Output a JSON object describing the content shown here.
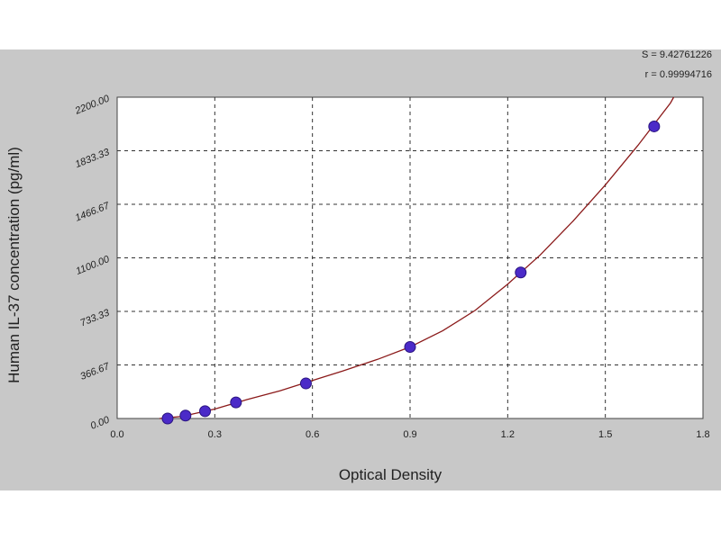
{
  "stats": {
    "s_line": "S = 9.42761226",
    "r_line": "r = 0.99994716"
  },
  "chart_data": {
    "type": "scatter",
    "xlabel": "Optical Density",
    "ylabel": "Human IL-37 concentration (pg/ml)",
    "xlim": [
      0.0,
      1.8
    ],
    "ylim": [
      0.0,
      2200.0
    ],
    "x_ticks": [
      "0.0",
      "0.3",
      "0.6",
      "0.9",
      "1.2",
      "1.5",
      "1.8"
    ],
    "y_ticks": [
      "0.00",
      "366.67",
      "733.33",
      "1100.00",
      "1466.67",
      "1833.33",
      "2200.00"
    ],
    "grid": true,
    "points": [
      {
        "x": 0.155,
        "y": 0
      },
      {
        "x": 0.21,
        "y": 20
      },
      {
        "x": 0.27,
        "y": 50
      },
      {
        "x": 0.365,
        "y": 110
      },
      {
        "x": 0.58,
        "y": 240
      },
      {
        "x": 0.9,
        "y": 490
      },
      {
        "x": 1.24,
        "y": 1000
      },
      {
        "x": 1.65,
        "y": 2000
      }
    ],
    "curve": [
      {
        "x": 0.13,
        "y": 0
      },
      {
        "x": 0.2,
        "y": 15
      },
      {
        "x": 0.3,
        "y": 65
      },
      {
        "x": 0.4,
        "y": 130
      },
      {
        "x": 0.5,
        "y": 190
      },
      {
        "x": 0.6,
        "y": 260
      },
      {
        "x": 0.7,
        "y": 330
      },
      {
        "x": 0.8,
        "y": 405
      },
      {
        "x": 0.9,
        "y": 490
      },
      {
        "x": 1.0,
        "y": 600
      },
      {
        "x": 1.1,
        "y": 740
      },
      {
        "x": 1.2,
        "y": 920
      },
      {
        "x": 1.3,
        "y": 1120
      },
      {
        "x": 1.4,
        "y": 1350
      },
      {
        "x": 1.5,
        "y": 1600
      },
      {
        "x": 1.6,
        "y": 1870
      },
      {
        "x": 1.7,
        "y": 2160
      },
      {
        "x": 1.71,
        "y": 2200
      }
    ],
    "colors": {
      "curve": "#8b1a1a",
      "point": "#4b2ac8",
      "grid": "#333333",
      "plot_bg": "#ffffff",
      "panel_bg": "#c8c8c8"
    }
  }
}
